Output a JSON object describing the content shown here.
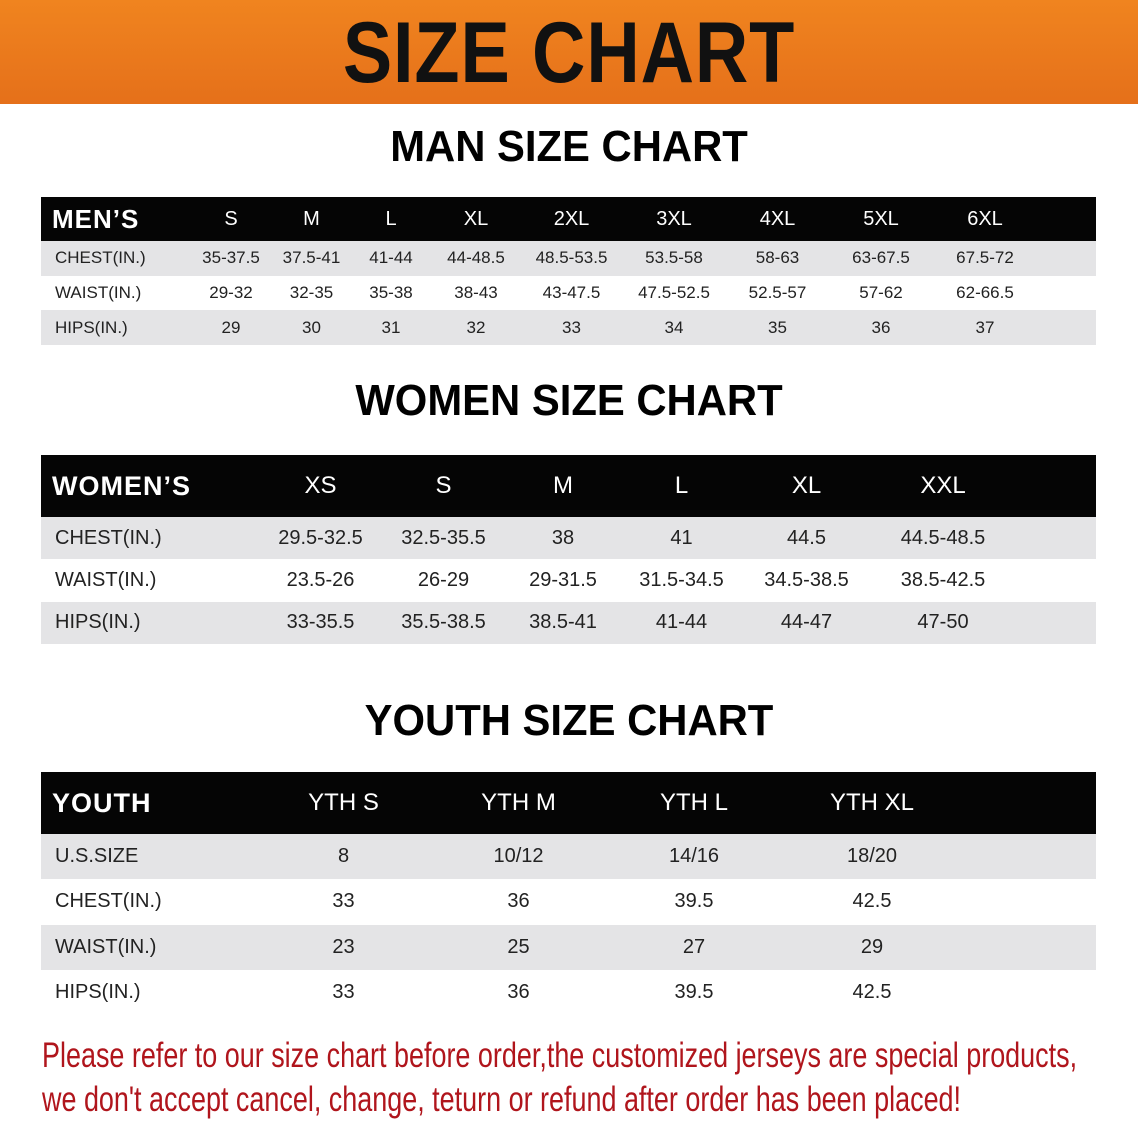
{
  "banner": {
    "title": "SIZE CHART",
    "color": "#ec7a1d"
  },
  "men": {
    "title": "MAN SIZE CHART",
    "header": [
      "MEN’S",
      "S",
      "M",
      "L",
      "XL",
      "2XL",
      "3XL",
      "4XL",
      "5XL",
      "6XL"
    ],
    "rows": [
      [
        "CHEST(IN.)",
        "35-37.5",
        "37.5-41",
        "41-44",
        "44-48.5",
        "48.5-53.5",
        "53.5-58",
        "58-63",
        "63-67.5",
        "67.5-72"
      ],
      [
        "WAIST(IN.)",
        "29-32",
        "32-35",
        "35-38",
        "38-43",
        "43-47.5",
        "47.5-52.5",
        "52.5-57",
        "57-62",
        "62-66.5"
      ],
      [
        "HIPS(IN.)",
        "29",
        "30",
        "31",
        "32",
        "33",
        "34",
        "35",
        "36",
        "37"
      ]
    ]
  },
  "women": {
    "title": "WOMEN SIZE CHART",
    "header": [
      "WOMEN’S",
      "XS",
      "S",
      "M",
      "L",
      "XL",
      "XXL"
    ],
    "rows": [
      [
        "CHEST(IN.)",
        "29.5-32.5",
        "32.5-35.5",
        "38",
        "41",
        "44.5",
        "44.5-48.5"
      ],
      [
        "WAIST(IN.)",
        "23.5-26",
        "26-29",
        "29-31.5",
        "31.5-34.5",
        "34.5-38.5",
        "38.5-42.5"
      ],
      [
        "HIPS(IN.)",
        "33-35.5",
        "35.5-38.5",
        "38.5-41",
        "41-44",
        "44-47",
        "47-50"
      ]
    ]
  },
  "youth": {
    "title": "YOUTH SIZE CHART",
    "header": [
      "YOUTH",
      "YTH S",
      "YTH M",
      "YTH L",
      "YTH XL"
    ],
    "rows": [
      [
        "U.S.SIZE",
        "8",
        "10/12",
        "14/16",
        "18/20"
      ],
      [
        "CHEST(IN.)",
        "33",
        "36",
        "39.5",
        "42.5"
      ],
      [
        "WAIST(IN.)",
        "23",
        "25",
        "27",
        "29"
      ],
      [
        "HIPS(IN.)",
        "33",
        "36",
        "39.5",
        "42.5"
      ]
    ]
  },
  "notice": {
    "line1": "Please refer to our size chart before order,the customized jerseys are special products,",
    "line2": "we don't accept cancel, change, teturn or refund after order has been placed!",
    "color": "#b0151c"
  }
}
